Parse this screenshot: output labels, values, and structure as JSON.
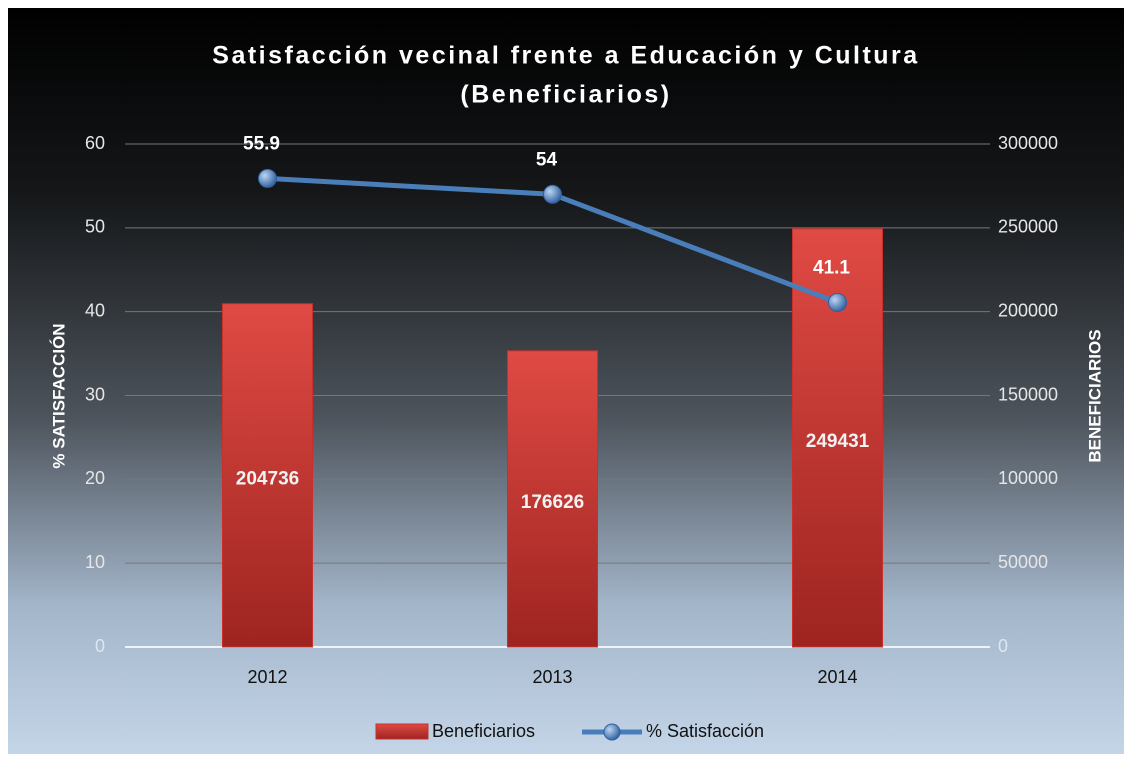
{
  "chart_data": {
    "type": "combo",
    "title": [
      "Satisfacción vecinal frente a Educación y Cultura",
      "(Beneficiarios)"
    ],
    "ylabel": "% SATISFACCIÓN",
    "y2label": "BENEFICIARIOS",
    "categories": [
      "2012",
      "2013",
      "2014"
    ],
    "series": [
      {
        "name": "Beneficiarios",
        "type": "bar",
        "axis": "y2",
        "color": "#c9302c",
        "values": [
          204736,
          176626,
          249431
        ]
      },
      {
        "name": "% Satisfacción",
        "type": "line",
        "axis": "y",
        "color": "#4a7ebb",
        "values": [
          55.9,
          54,
          41.1
        ]
      }
    ],
    "ylim": [
      0,
      60
    ],
    "yticks": [
      0,
      10,
      20,
      30,
      40,
      50,
      60
    ],
    "y2lim": [
      0,
      300000
    ],
    "y2ticks": [
      0,
      50000,
      100000,
      150000,
      200000,
      250000,
      300000
    ],
    "grid": true,
    "legend": "bottom"
  }
}
